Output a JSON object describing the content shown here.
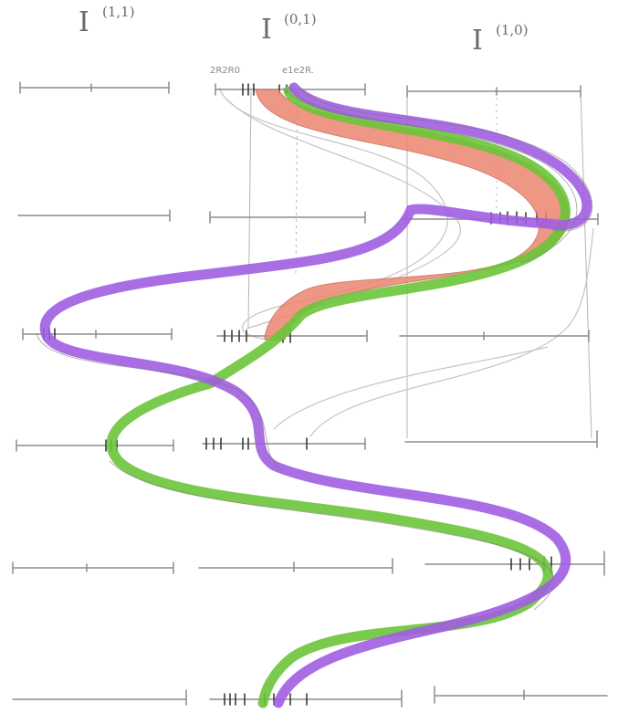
{
  "columns": [
    {
      "letter": "I",
      "index": "(1,1)"
    },
    {
      "letter": "I",
      "index": "(0,1)"
    },
    {
      "letter": "I",
      "index": "(1,0)"
    }
  ],
  "annotations": {
    "left_note": "2R2R0",
    "right_note": "e1e2R."
  },
  "colors": {
    "pencil": "#9a9a9a",
    "purple": "#a05ee0",
    "green": "#6cc43a",
    "red": "#ec8670",
    "dark": "#4a4a4a"
  }
}
